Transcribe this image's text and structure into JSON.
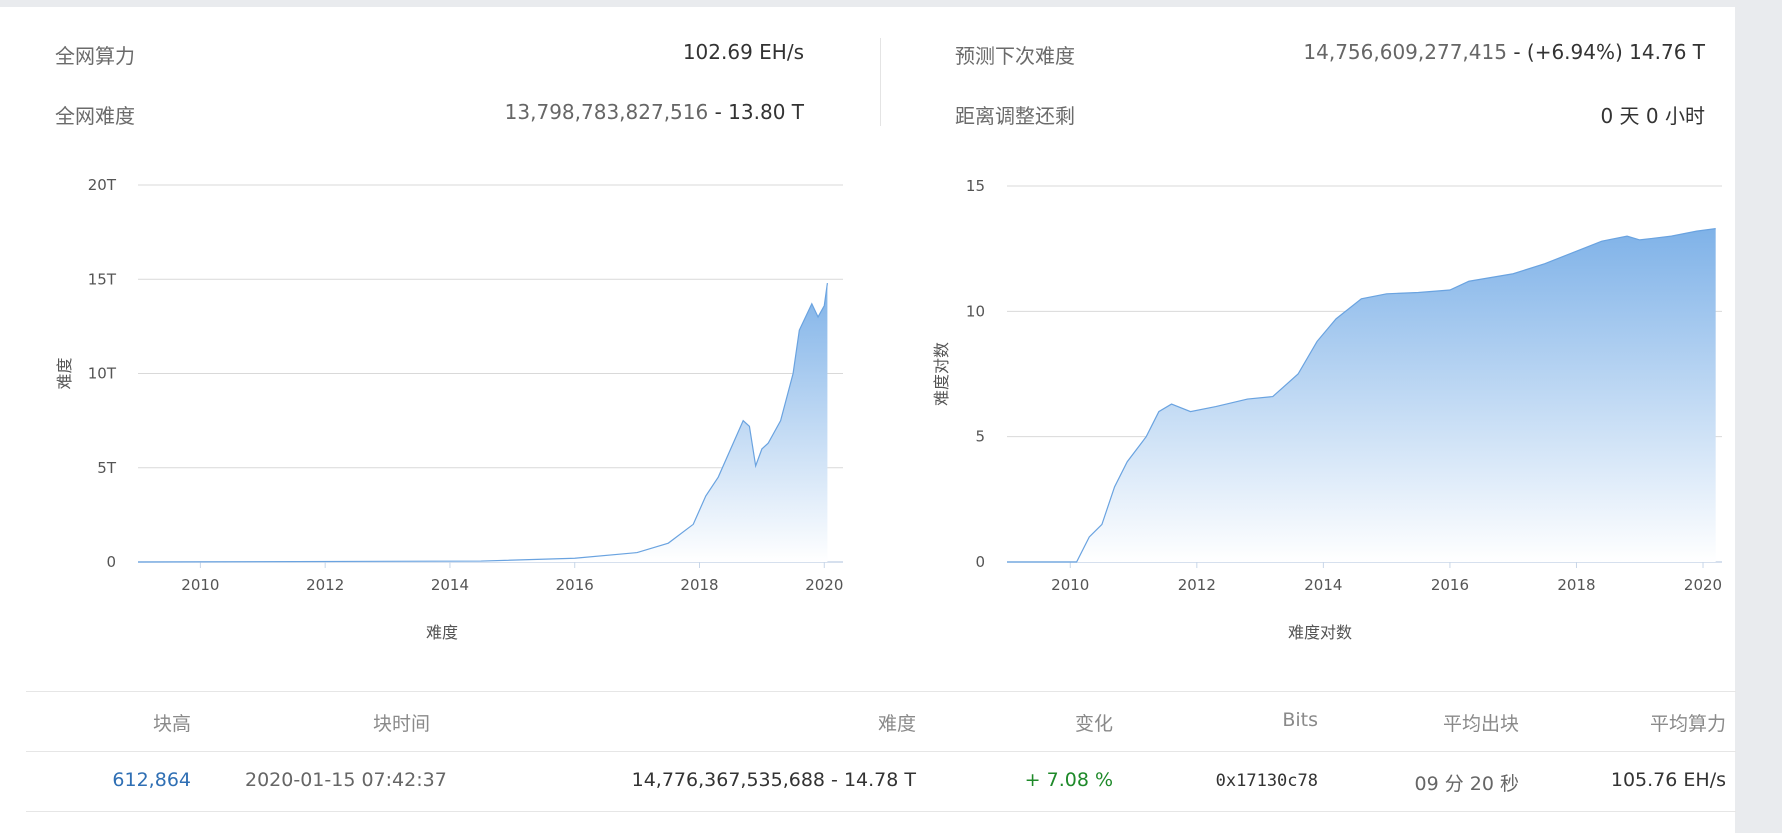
{
  "stats": {
    "network_hashrate_label": "全网算力",
    "network_hashrate_value": "102.69 EH/s",
    "network_difficulty_label": "全网难度",
    "network_difficulty_raw": "13,798,783,827,516",
    "network_difficulty_short": " - 13.80 T",
    "predicted_difficulty_label": "预测下次难度",
    "predicted_difficulty_raw": "14,756,609,277,415",
    "predicted_difficulty_change": " - (+6.94%) 14.76 T",
    "time_to_adjust_label": "距离调整还剩",
    "time_to_adjust_value": "0 天 0 小时"
  },
  "chart_data": [
    {
      "type": "area",
      "ylabel": "难度",
      "xlabel": "难度",
      "ylim": [
        0,
        20
      ],
      "y_unit": "T",
      "yticks": [
        "0",
        "5T",
        "10T",
        "15T",
        "20T"
      ],
      "xticks": [
        "2010",
        "2012",
        "2014",
        "2016",
        "2018",
        "2020"
      ],
      "grid": true,
      "x": [
        2009.0,
        2014.5,
        2016.0,
        2017.0,
        2017.5,
        2017.9,
        2018.1,
        2018.3,
        2018.5,
        2018.7,
        2018.8,
        2018.9,
        2019.0,
        2019.1,
        2019.3,
        2019.5,
        2019.6,
        2019.8,
        2019.9,
        2020.0,
        2020.05
      ],
      "values": [
        0.0,
        0.05,
        0.2,
        0.5,
        1.0,
        2.0,
        3.5,
        4.5,
        6.0,
        7.5,
        7.2,
        5.1,
        6.0,
        6.3,
        7.5,
        10.0,
        12.3,
        13.7,
        13.0,
        13.6,
        14.8
      ]
    },
    {
      "type": "area",
      "ylabel": "难度对数",
      "xlabel": "难度对数",
      "ylim": [
        0,
        15
      ],
      "yticks": [
        "0",
        "5",
        "10",
        "15"
      ],
      "xticks": [
        "2010",
        "2012",
        "2014",
        "2016",
        "2018",
        "2020"
      ],
      "grid": true,
      "x": [
        2009.0,
        2010.1,
        2010.3,
        2010.5,
        2010.7,
        2010.9,
        2011.2,
        2011.4,
        2011.6,
        2011.9,
        2012.3,
        2012.8,
        2013.2,
        2013.6,
        2013.9,
        2014.2,
        2014.6,
        2015.0,
        2015.5,
        2016.0,
        2016.3,
        2017.0,
        2017.5,
        2018.0,
        2018.4,
        2018.8,
        2019.0,
        2019.5,
        2019.9,
        2020.2
      ],
      "values": [
        0.0,
        0.0,
        1.0,
        1.5,
        3.0,
        4.0,
        5.0,
        6.0,
        6.3,
        6.0,
        6.2,
        6.5,
        6.6,
        7.5,
        8.8,
        9.7,
        10.5,
        10.7,
        10.75,
        10.85,
        11.2,
        11.5,
        11.9,
        12.4,
        12.8,
        13.0,
        12.85,
        13.0,
        13.2,
        13.3
      ]
    }
  ],
  "table": {
    "headers": [
      "块高",
      "块时间",
      "难度",
      "变化",
      "Bits",
      "平均出块",
      "平均算力"
    ],
    "rows": [
      {
        "height": "612,864",
        "time": "2020-01-15 07:42:37",
        "difficulty": "14,776,367,535,688 - 14.78 T",
        "change": "+ 7.08 %",
        "bits": "0x17130c78",
        "avg_block": "09 分 20 秒",
        "avg_hash": "105.76 EH/s"
      }
    ]
  }
}
